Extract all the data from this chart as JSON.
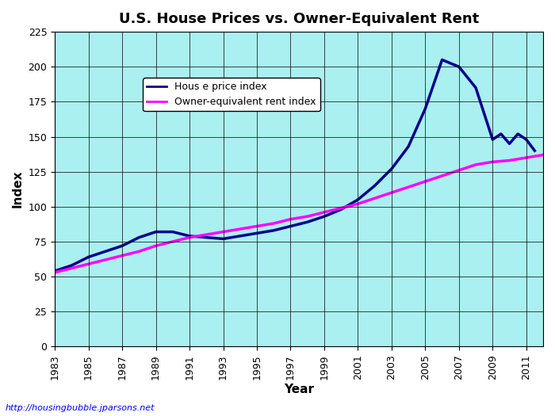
{
  "title": "U.S. House Prices vs. Owner-Equivalent Rent",
  "xlabel": "Year",
  "ylabel": "Index",
  "background_color": "#aaf0f0",
  "plot_bg_color": "#aaf0f0",
  "figure_bg_color": "#ffffff",
  "grid_color": "#000000",
  "xlim": [
    1983,
    2012
  ],
  "ylim": [
    0,
    225
  ],
  "xticks": [
    1983,
    1985,
    1987,
    1989,
    1991,
    1993,
    1995,
    1997,
    1999,
    2001,
    2003,
    2005,
    2007,
    2009,
    2011
  ],
  "yticks": [
    0,
    25,
    50,
    75,
    100,
    125,
    150,
    175,
    200,
    225
  ],
  "url_text": "http://housingbubble.jparsons.net",
  "house_price_label": "Hous e price index",
  "rent_label": "Owner-equivalent rent index",
  "house_price_color": "#00008B",
  "rent_color": "#FF00FF",
  "house_price_linewidth": 2.5,
  "rent_linewidth": 2.5,
  "house_price_x": [
    1983,
    1984,
    1985,
    1986,
    1987,
    1988,
    1989,
    1990,
    1991,
    1992,
    1993,
    1994,
    1995,
    1996,
    1997,
    1998,
    1999,
    2000,
    2001,
    2002,
    2003,
    2004,
    2005,
    2006,
    2007,
    2008,
    2009,
    2009.5,
    2010,
    2010.5,
    2011,
    2011.5
  ],
  "house_price_y": [
    54,
    58,
    64,
    68,
    72,
    78,
    82,
    82,
    79,
    78,
    77,
    79,
    81,
    83,
    86,
    89,
    93,
    98,
    105,
    115,
    127,
    143,
    170,
    205,
    200,
    185,
    148,
    152,
    145,
    152,
    148,
    140
  ],
  "rent_x": [
    1983,
    1984,
    1985,
    1986,
    1987,
    1988,
    1989,
    1990,
    1991,
    1992,
    1993,
    1994,
    1995,
    1996,
    1997,
    1998,
    1999,
    2000,
    2001,
    2002,
    2003,
    2004,
    2005,
    2006,
    2007,
    2008,
    2009,
    2010,
    2011,
    2012
  ],
  "rent_y": [
    53,
    56,
    59,
    62,
    65,
    68,
    72,
    75,
    78,
    80,
    82,
    84,
    86,
    88,
    91,
    93,
    96,
    99,
    102,
    106,
    110,
    114,
    118,
    122,
    126,
    130,
    132,
    133,
    135,
    137
  ]
}
